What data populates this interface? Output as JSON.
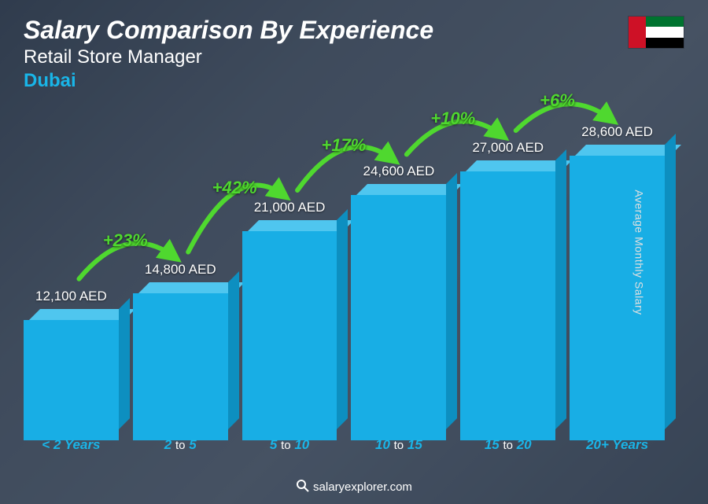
{
  "header": {
    "title": "Salary Comparison By Experience",
    "subtitle": "Retail Store Manager",
    "location": "Dubai",
    "location_color": "#19b5e8"
  },
  "flag": {
    "name": "uae-flag",
    "hoist_color": "#ce1126",
    "stripes": [
      "#00732f",
      "#ffffff",
      "#000000"
    ]
  },
  "y_axis_label": "Average Monthly Salary",
  "footer": "salaryexplorer.com",
  "chart": {
    "type": "bar",
    "max_value": 30000,
    "bar_front_color": "#18aee5",
    "bar_top_color": "#4fc6ef",
    "bar_side_color": "#0d8fc0",
    "x_label_color": "#19b5e8",
    "categories": [
      {
        "range_a": "< 2",
        "range_b": "Years",
        "value": 12100,
        "label": "12,100 AED"
      },
      {
        "range_a": "2",
        "mid": "to",
        "range_b": "5",
        "value": 14800,
        "label": "14,800 AED"
      },
      {
        "range_a": "5",
        "mid": "to",
        "range_b": "10",
        "value": 21000,
        "label": "21,000 AED"
      },
      {
        "range_a": "10",
        "mid": "to",
        "range_b": "15",
        "value": 24600,
        "label": "24,600 AED"
      },
      {
        "range_a": "15",
        "mid": "to",
        "range_b": "20",
        "value": 27000,
        "label": "27,000 AED"
      },
      {
        "range_a": "20+",
        "range_b": "Years",
        "value": 28600,
        "label": "28,600 AED"
      }
    ],
    "increases": [
      {
        "label": "+23%",
        "color": "#4fd82f"
      },
      {
        "label": "+42%",
        "color": "#4fd82f"
      },
      {
        "label": "+17%",
        "color": "#4fd82f"
      },
      {
        "label": "+10%",
        "color": "#4fd82f"
      },
      {
        "label": "+6%",
        "color": "#4fd82f"
      }
    ]
  }
}
